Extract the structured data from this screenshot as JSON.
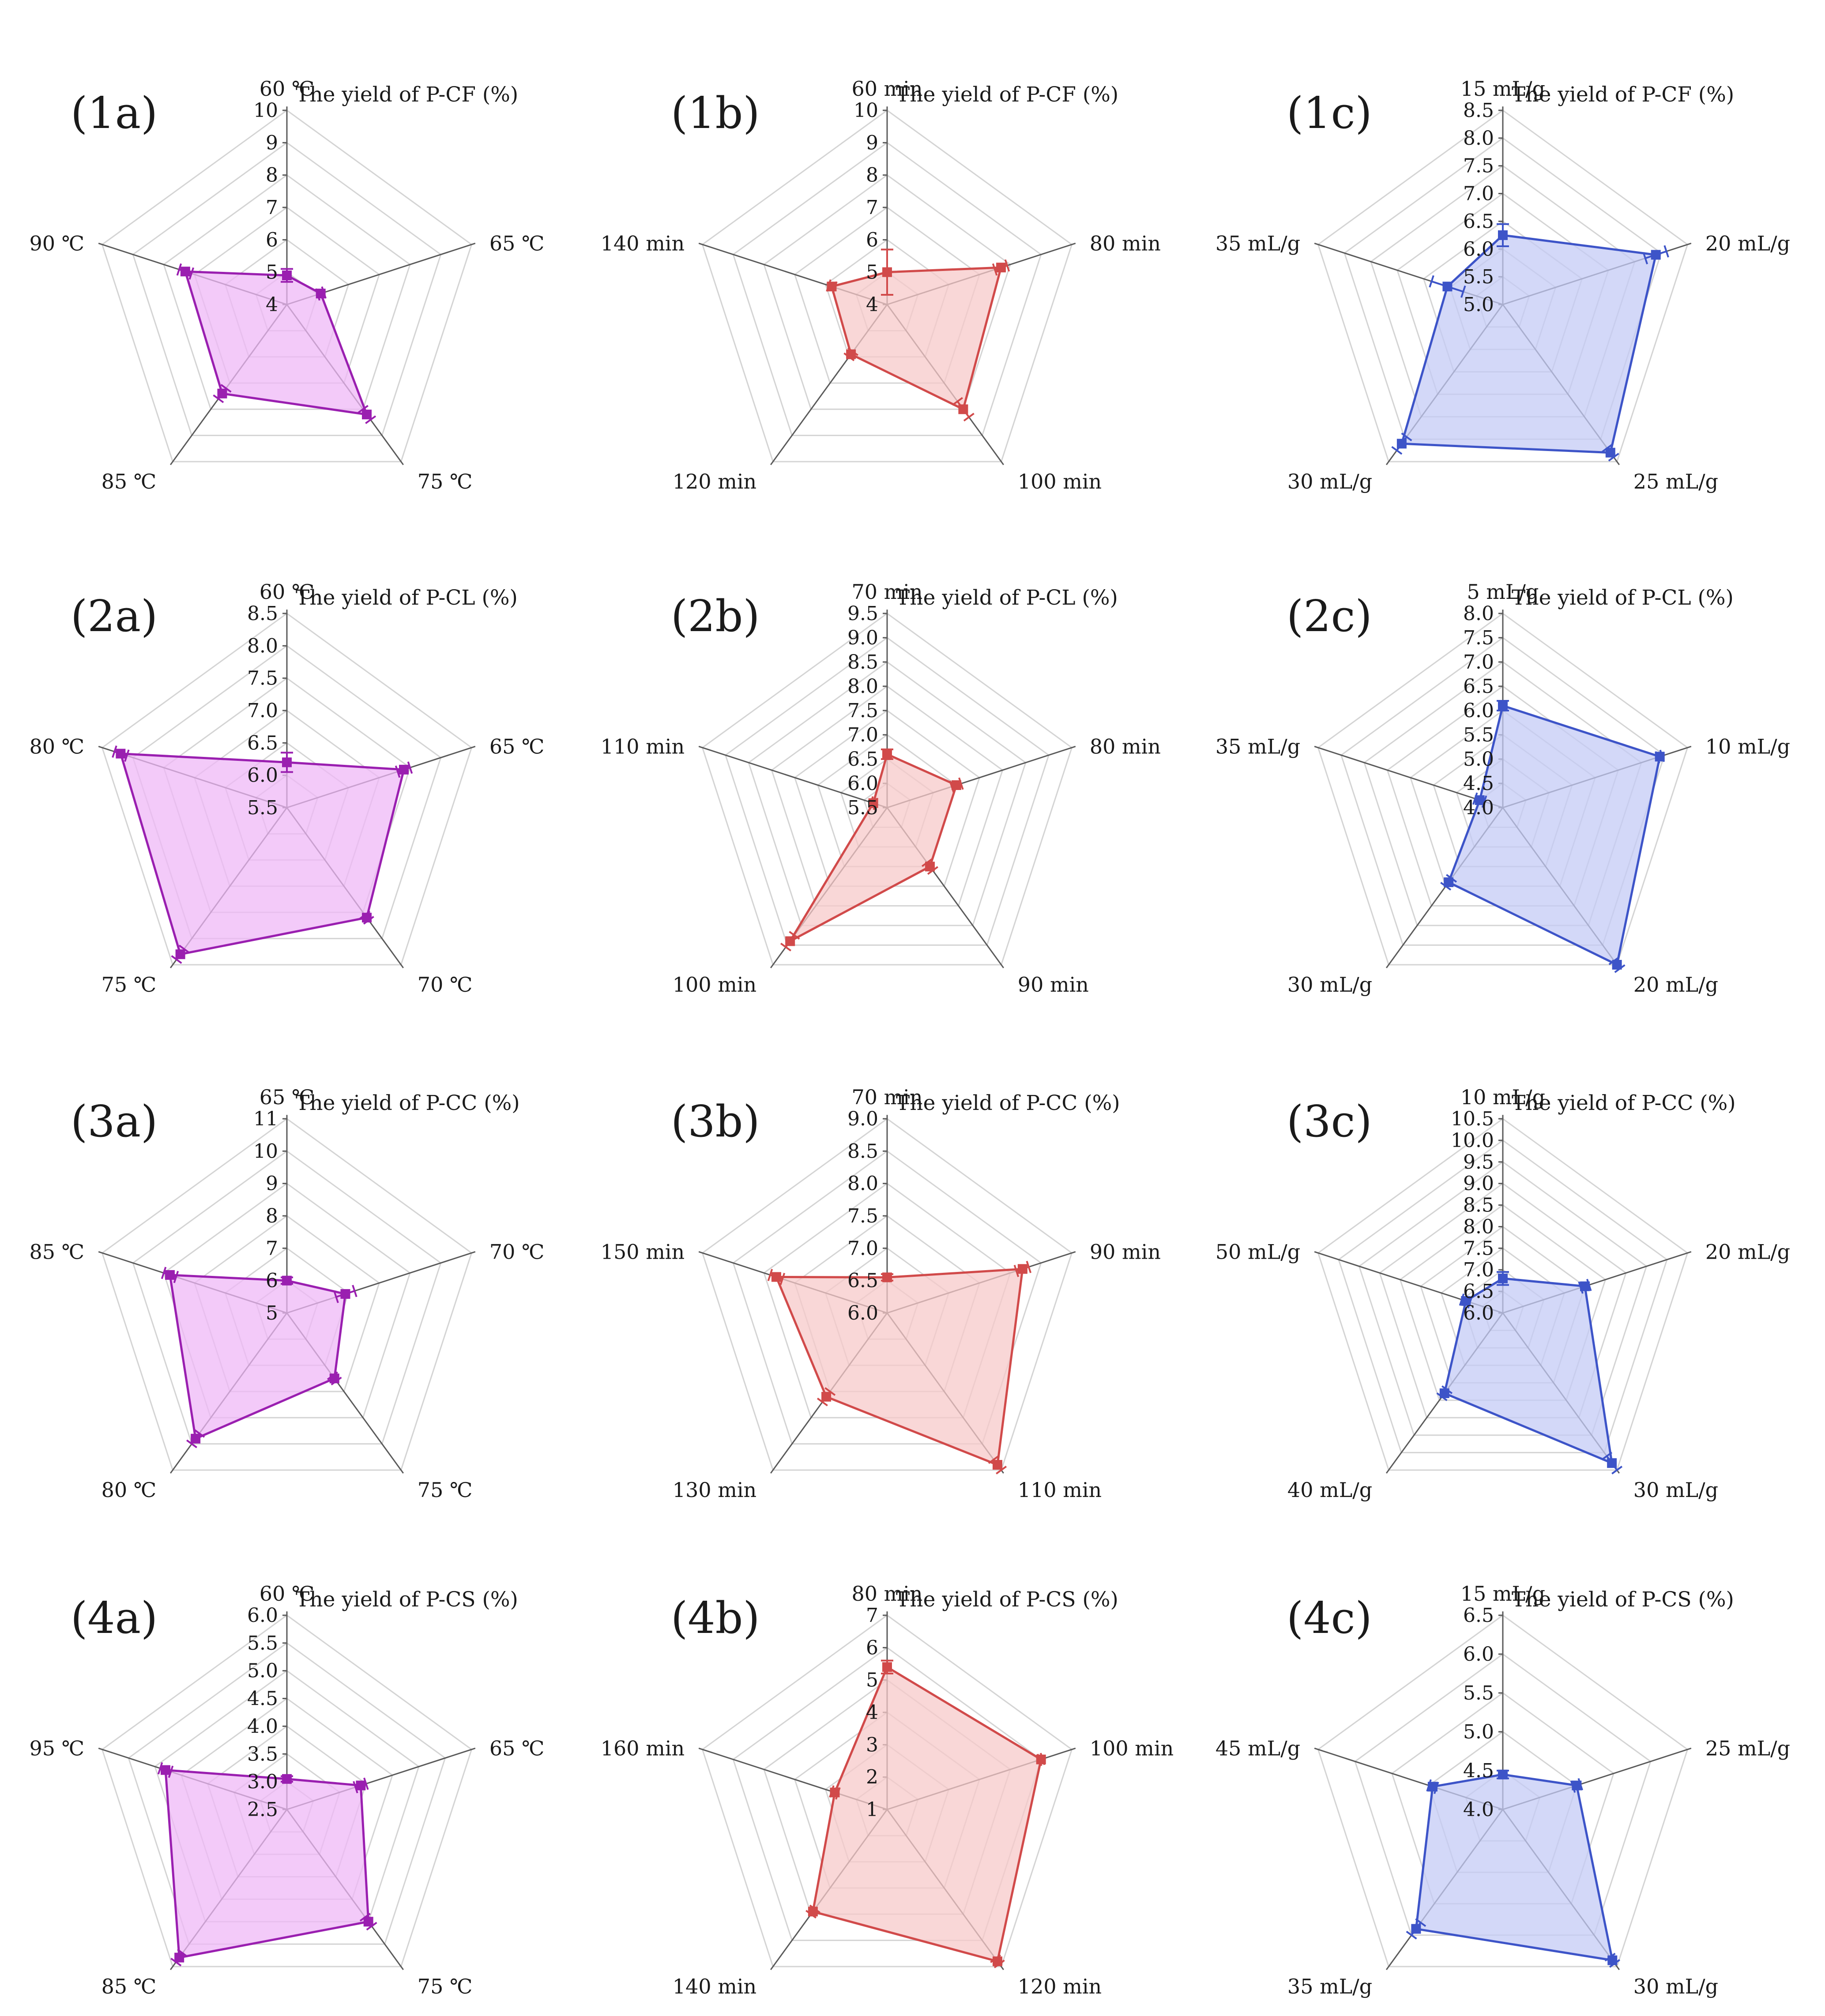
{
  "figure": {
    "chart_data": [
      {
        "type": "radar",
        "panel": "(1a)",
        "color": "#9a1fb0",
        "fill": "#efb8f7",
        "title": "The yield of P-CF (%)",
        "categories": [
          "60 ℃",
          "65 ℃",
          "75 ℃",
          "85 ℃",
          "90 ℃"
        ],
        "values": [
          4.9,
          5.1,
          8.2,
          7.4,
          7.3
        ],
        "errors": [
          0.2,
          0.1,
          0.2,
          0.2,
          0.2
        ],
        "ylim": [
          4,
          10
        ],
        "ticks": [
          "4",
          "5",
          "6",
          "7",
          "8",
          "9",
          "10"
        ]
      },
      {
        "type": "radar",
        "panel": "(1b)",
        "color": "#d14a4a",
        "fill": "#f7c9c9",
        "title": "The yield of P-CF (%)",
        "categories": [
          "60 min",
          "80 min",
          "100 min",
          "120 min",
          "140 min"
        ],
        "values": [
          5.0,
          7.7,
          8.0,
          5.9,
          5.8
        ],
        "errors": [
          0.7,
          0.2,
          0.3,
          0.1,
          0.1
        ],
        "ylim": [
          4,
          10
        ],
        "ticks": [
          "4",
          "5",
          "6",
          "7",
          "8",
          "9",
          "10"
        ]
      },
      {
        "type": "radar",
        "panel": "(1c)",
        "color": "#3d54c8",
        "fill": "#c4cbf5",
        "title": "The yield of P-CF (%)",
        "categories": [
          "15 mL/g",
          "20 mL/g",
          "25 mL/g",
          "30 mL/g",
          "35 mL/g"
        ],
        "values": [
          6.25,
          7.9,
          8.3,
          8.1,
          6.05
        ],
        "errors": [
          0.2,
          0.2,
          0.1,
          0.15,
          0.3
        ],
        "ylim": [
          5.0,
          8.5
        ],
        "ticks": [
          "5.0",
          "5.5",
          "6.0",
          "6.5",
          "7.0",
          "7.5",
          "8.0",
          "8.5"
        ]
      },
      {
        "type": "radar",
        "panel": "(2a)",
        "color": "#9a1fb0",
        "fill": "#efb8f7",
        "title": "The yield of P-CL (%)",
        "categories": [
          "60 ℃",
          "65 ℃",
          "70 ℃",
          "75 ℃",
          "80 ℃"
        ],
        "values": [
          6.2,
          7.4,
          7.6,
          8.3,
          8.2
        ],
        "errors": [
          0.15,
          0.1,
          0.05,
          0.1,
          0.1
        ],
        "ylim": [
          5.5,
          8.5
        ],
        "ticks": [
          "5.5",
          "6.0",
          "6.5",
          "7.0",
          "7.5",
          "8.0",
          "8.5"
        ]
      },
      {
        "type": "radar",
        "panel": "(2b)",
        "color": "#d14a4a",
        "fill": "#f7c9c9",
        "title": "The yield of P-CL (%)",
        "categories": [
          "70 min",
          "80 min",
          "90 min",
          "100 min",
          "110 min"
        ],
        "values": [
          6.6,
          7.0,
          7.0,
          8.9,
          5.8
        ],
        "errors": [
          0.1,
          0.1,
          0.1,
          0.15,
          0.05
        ],
        "ylim": [
          5.5,
          9.5
        ],
        "ticks": [
          "5.5",
          "6.0",
          "6.5",
          "7.0",
          "7.5",
          "8.0",
          "8.5",
          "9.0",
          "9.5"
        ]
      },
      {
        "type": "radar",
        "panel": "(2c)",
        "color": "#3d54c8",
        "fill": "#c4cbf5",
        "title": "The yield of P-CL (%)",
        "categories": [
          "5 mL/g",
          "10 mL/g",
          "20 mL/g",
          "30 mL/g",
          "35 mL/g"
        ],
        "values": [
          6.1,
          7.4,
          8.0,
          5.9,
          4.5
        ],
        "errors": [
          0.1,
          0.05,
          0.1,
          0.1,
          0.1
        ],
        "ylim": [
          4.0,
          8.0
        ],
        "ticks": [
          "4.0",
          "4.5",
          "5.0",
          "5.5",
          "6.0",
          "6.5",
          "7.0",
          "7.5",
          "8.0"
        ]
      },
      {
        "type": "radar",
        "panel": "(3a)",
        "color": "#9a1fb0",
        "fill": "#efb8f7",
        "title": "The yield of P-CC (%)",
        "categories": [
          "65 ℃",
          "70 ℃",
          "75 ℃",
          "80 ℃",
          "85 ℃"
        ],
        "values": [
          6.0,
          6.9,
          7.5,
          9.8,
          8.8
        ],
        "errors": [
          0.1,
          0.3,
          0.1,
          0.2,
          0.2
        ],
        "ylim": [
          5,
          11
        ],
        "ticks": [
          "5",
          "6",
          "7",
          "8",
          "9",
          "10",
          "11"
        ]
      },
      {
        "type": "radar",
        "panel": "(3b)",
        "color": "#d14a4a",
        "fill": "#f7c9c9",
        "title": "The yield of P-CC (%)",
        "categories": [
          "70 min",
          "90 min",
          "110 min",
          "130 min",
          "150 min"
        ],
        "values": [
          6.55,
          8.2,
          8.9,
          7.6,
          7.8
        ],
        "errors": [
          0.05,
          0.1,
          0.1,
          0.1,
          0.1
        ],
        "ylim": [
          6.0,
          9.0
        ],
        "ticks": [
          "6.0",
          "6.5",
          "7.0",
          "7.5",
          "8.0",
          "8.5",
          "9.0"
        ]
      },
      {
        "type": "radar",
        "panel": "(3c)",
        "color": "#3d54c8",
        "fill": "#c4cbf5",
        "title": "The yield of P-CC (%)",
        "categories": [
          "10 mL/g",
          "20 mL/g",
          "30 mL/g",
          "40 mL/g",
          "50 mL/g"
        ],
        "values": [
          6.8,
          8.0,
          10.3,
          8.3,
          6.9
        ],
        "errors": [
          0.15,
          0.1,
          0.2,
          0.1,
          0.1
        ],
        "ylim": [
          6.0,
          10.5
        ],
        "ticks": [
          "6.0",
          "6.5",
          "7.0",
          "7.5",
          "8.0",
          "8.5",
          "9.0",
          "9.5",
          "10.0",
          "10.5"
        ]
      },
      {
        "type": "radar",
        "panel": "(4a)",
        "color": "#9a1fb0",
        "fill": "#efb8f7",
        "title": "The yield of P-CS (%)",
        "categories": [
          "60 ℃",
          "65 ℃",
          "75 ℃",
          "85 ℃",
          "95 ℃"
        ],
        "values": [
          3.05,
          3.9,
          5.0,
          5.8,
          4.8
        ],
        "errors": [
          0.05,
          0.1,
          0.1,
          0.1,
          0.1
        ],
        "ylim": [
          2.5,
          6.0
        ],
        "ticks": [
          "2.5",
          "3.0",
          "3.5",
          "4.0",
          "4.5",
          "5.0",
          "5.5",
          "6.0"
        ]
      },
      {
        "type": "radar",
        "panel": "(4b)",
        "color": "#d14a4a",
        "fill": "#f7c9c9",
        "title": "The yield of P-CS (%)",
        "categories": [
          "80 min",
          "100 min",
          "120 min",
          "140 min",
          "160 min"
        ],
        "values": [
          5.4,
          6.0,
          6.8,
          4.9,
          2.7
        ],
        "errors": [
          0.2,
          0.05,
          0.1,
          0.1,
          0.1
        ],
        "ylim": [
          1,
          7
        ],
        "ticks": [
          "1",
          "2",
          "3",
          "4",
          "5",
          "6",
          "7"
        ]
      },
      {
        "type": "radar",
        "panel": "(4c)",
        "color": "#3d54c8",
        "fill": "#c4cbf5",
        "title": "The yield of P-CS (%)",
        "categories": [
          "15 mL/g",
          "25 mL/g",
          "30 mL/g",
          "35 mL/g",
          "45 mL/g"
        ],
        "values": [
          4.45,
          5.0,
          6.4,
          5.9,
          4.95
        ],
        "errors": [
          0.05,
          0.05,
          0.05,
          0.1,
          0.05
        ],
        "ylim": [
          4.0,
          6.5
        ],
        "ticks": [
          "4.0",
          "4.5",
          "5.0",
          "5.5",
          "6.0",
          "6.5"
        ]
      }
    ]
  }
}
